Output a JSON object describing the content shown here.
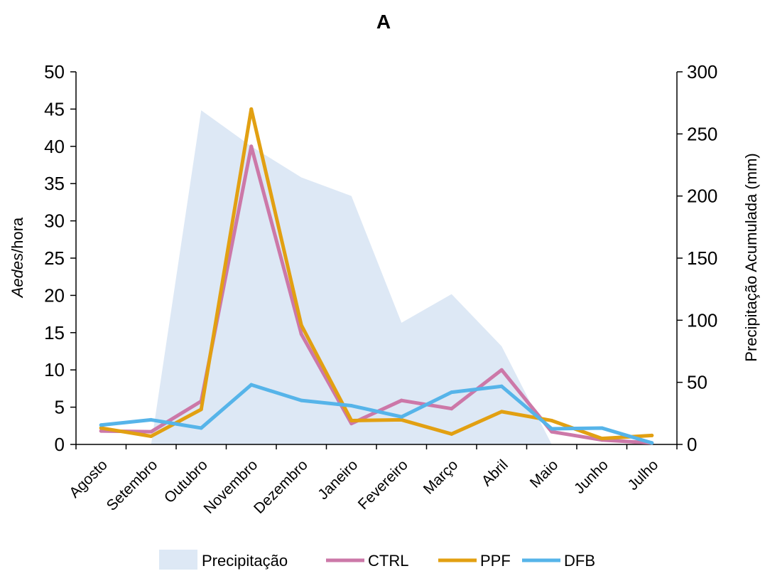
{
  "chart_data": {
    "type": "line",
    "title": "A",
    "categories": [
      "Agosto",
      "Setembro",
      "Outubro",
      "Novembro",
      "Dezembro",
      "Janeiro",
      "Fevereiro",
      "Março",
      "Abril",
      "Maio",
      "Junho",
      "Julho"
    ],
    "ylabel_italic": "Aedes",
    "ylabel_rest": "/hora",
    "y2label": "Precipitação Acumulada (mm)",
    "ylim": [
      0,
      50
    ],
    "yticks": [
      0,
      5,
      10,
      15,
      20,
      25,
      30,
      35,
      40,
      45,
      50
    ],
    "y2lim": [
      0,
      300
    ],
    "y2ticks": [
      0,
      50,
      100,
      150,
      200,
      250,
      300
    ],
    "grid": false,
    "legend_position": "bottom",
    "area": {
      "name": "Precipitação",
      "axis": "right",
      "color": "#dde8f5",
      "values": [
        0,
        0,
        269,
        240,
        215,
        200,
        98,
        121,
        79,
        0,
        0,
        0
      ]
    },
    "series": [
      {
        "name": "CTRL",
        "axis": "left",
        "color": "#cc78a8",
        "values": [
          1.8,
          1.7,
          5.8,
          40.0,
          14.8,
          2.8,
          5.9,
          4.8,
          10.0,
          1.7,
          0.6,
          0.2
        ]
      },
      {
        "name": "PPF",
        "axis": "left",
        "color": "#e2a012",
        "values": [
          2.2,
          1.1,
          4.7,
          45.0,
          16.0,
          3.2,
          3.3,
          1.4,
          4.4,
          3.2,
          0.8,
          1.2
        ]
      },
      {
        "name": "DFB",
        "axis": "left",
        "color": "#56b4e9",
        "values": [
          2.6,
          3.3,
          2.2,
          8.0,
          5.9,
          5.2,
          3.7,
          7.0,
          7.8,
          2.1,
          2.2,
          0.2
        ]
      }
    ]
  }
}
